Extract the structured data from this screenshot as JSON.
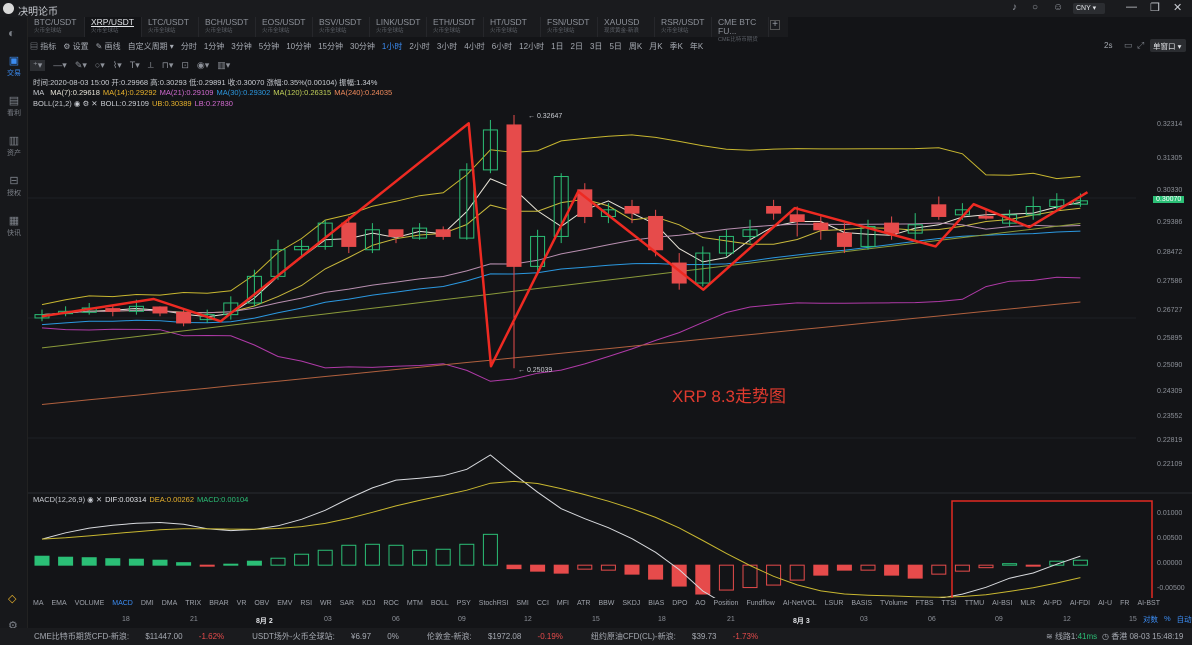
{
  "app": {
    "title": "决明论币",
    "currency": "CNY"
  },
  "tabs": [
    {
      "name": "BTC/USDT",
      "sub": "火币全球站"
    },
    {
      "name": "XRP/USDT",
      "sub": "火币全球站"
    },
    {
      "name": "LTC/USDT",
      "sub": "火币全球站"
    },
    {
      "name": "BCH/USDT",
      "sub": "火币全球站"
    },
    {
      "name": "EOS/USDT",
      "sub": "火币全球站"
    },
    {
      "name": "BSV/USDT",
      "sub": "火币全球站"
    },
    {
      "name": "LINK/USDT",
      "sub": "火币全球站"
    },
    {
      "name": "ETH/USDT",
      "sub": "火币全球站"
    },
    {
      "name": "HT/USDT",
      "sub": "火币全球站"
    },
    {
      "name": "FSN/USDT",
      "sub": "火币全球站"
    },
    {
      "name": "XAUUSD",
      "sub": "现货黄金-新浪"
    },
    {
      "name": "RSR/USDT",
      "sub": "火币全球站"
    },
    {
      "name": "CME BTC FU...",
      "sub": "CME比特币期货"
    }
  ],
  "sidebar": [
    {
      "label": "交易",
      "icon": "chart-icon"
    },
    {
      "label": "看利",
      "icon": "bag-icon"
    },
    {
      "label": "资产",
      "icon": "wallet-icon"
    },
    {
      "label": "授权",
      "icon": "key-icon"
    },
    {
      "label": "快讯",
      "icon": "news-icon"
    }
  ],
  "toolbar": {
    "items": [
      "指标",
      "设置",
      "画线",
      "自定义周期",
      "分时",
      "1分钟",
      "3分钟",
      "5分钟",
      "10分钟",
      "15分钟",
      "30分钟",
      "1小时",
      "2小时",
      "3小时",
      "4小时",
      "6小时",
      "12小时",
      "1日",
      "2日",
      "3日",
      "5日",
      "周K",
      "月K",
      "季K",
      "年K"
    ],
    "active": "1小时",
    "refresh": "2s",
    "mode": "单窗口"
  },
  "info_line": "时间:2020-08-03 15:00 开:0.29968 高:0.30293 低:0.29891 收:0.30070 涨幅:0.35%(0.00104) 振幅:1.34%",
  "ma_legend": [
    "MA",
    "MA(7):0.29618",
    "MA(14):0.29292",
    "MA(21):0.29109",
    "MA(30):0.29302",
    "MA(120):0.26315",
    "MA(240):0.24035"
  ],
  "boll_legend": [
    "BOLL(21,2)",
    "BOLL:0.29109",
    "UB:0.30389",
    "LB:0.27830"
  ],
  "macd_legend": [
    "MACD(12,26,9)",
    "DIF:0.00314",
    "DEA:0.00262",
    "MACD:0.00104"
  ],
  "annotation": "XRP 8.3走势图",
  "price_labels": {
    "high": "0.32647",
    "low": "0.25039",
    "current": "0.30070"
  },
  "y_axis": [
    "0.32314",
    "0.31305",
    "0.30330",
    "0.29386",
    "0.28472",
    "0.27586",
    "0.26727",
    "0.25895",
    "0.25090",
    "0.24309",
    "0.23552",
    "0.22819",
    "0.22109"
  ],
  "macd_axis": [
    "0.01000",
    "0.00500",
    "0.00000",
    "-0.00500"
  ],
  "x_axis": [
    "18",
    "21",
    "8月 2",
    "03",
    "06",
    "09",
    "12",
    "15",
    "18",
    "21",
    "8月 3",
    "03",
    "06",
    "09",
    "12",
    "15"
  ],
  "indicators": [
    "MA",
    "EMA",
    "VOLUME",
    "MACD",
    "DMI",
    "DMA",
    "TRIX",
    "BRAR",
    "VR",
    "OBV",
    "EMV",
    "RSI",
    "WR",
    "SAR",
    "KDJ",
    "ROC",
    "MTM",
    "BOLL",
    "PSY",
    "StochRSI",
    "SMI",
    "CCI",
    "MFI",
    "ATR",
    "BBW",
    "SKDJ",
    "BIAS",
    "DPO",
    "AO",
    "Position",
    "Fundflow",
    "AI-NetVOL",
    "LSUR",
    "BASIS",
    "TVolume",
    "FTBS",
    "TTSI",
    "TTMU",
    "AI-BSI",
    "MLR",
    "AI-PD",
    "AI-FDI",
    "AI-U",
    "FR",
    "AI-BST"
  ],
  "indicator_active": "MACD",
  "right_controls": [
    "对数",
    "%",
    "自动"
  ],
  "status": [
    {
      "label": "CME比特币期货CFD-新浪",
      "price": "$11447.00",
      "change": "-1.62%"
    },
    {
      "label": "USDT场外-火币全球站",
      "price": "¥6.97",
      "change": "0%"
    },
    {
      "label": "伦敦金-新浪",
      "price": "$1972.08",
      "change": "-0.19%"
    },
    {
      "label": "纽约原油CFD(CL)-新浪",
      "price": "$39.73",
      "change": "-1.73%"
    }
  ],
  "network": {
    "label": "线路1:",
    "latency": "41ms"
  },
  "clock": "香港 08-03 15:48:19",
  "chart_data": {
    "type": "candlestick",
    "ylim": [
      0.215,
      0.331
    ],
    "candles": [
      [
        0.2655,
        0.2665,
        0.2645,
        0.268
      ],
      [
        0.2668,
        0.2675,
        0.266,
        0.269
      ],
      [
        0.2672,
        0.2685,
        0.2665,
        0.27
      ],
      [
        0.2683,
        0.2675,
        0.266,
        0.269
      ],
      [
        0.2675,
        0.269,
        0.2665,
        0.271
      ],
      [
        0.2688,
        0.267,
        0.266,
        0.269
      ],
      [
        0.2672,
        0.264,
        0.263,
        0.268
      ],
      [
        0.265,
        0.2665,
        0.264,
        0.268
      ],
      [
        0.2665,
        0.27,
        0.265,
        0.272
      ],
      [
        0.27,
        0.278,
        0.269,
        0.28
      ],
      [
        0.278,
        0.286,
        0.277,
        0.289
      ],
      [
        0.286,
        0.287,
        0.284,
        0.289
      ],
      [
        0.287,
        0.294,
        0.286,
        0.295
      ],
      [
        0.294,
        0.287,
        0.285,
        0.296
      ],
      [
        0.286,
        0.292,
        0.285,
        0.294
      ],
      [
        0.292,
        0.29,
        0.288,
        0.292
      ],
      [
        0.2895,
        0.2925,
        0.289,
        0.294
      ],
      [
        0.292,
        0.29,
        0.289,
        0.293
      ],
      [
        0.2895,
        0.31,
        0.289,
        0.312
      ],
      [
        0.31,
        0.322,
        0.309,
        0.325
      ],
      [
        0.3235,
        0.281,
        0.2504,
        0.3265
      ],
      [
        0.281,
        0.29,
        0.279,
        0.292
      ],
      [
        0.29,
        0.308,
        0.288,
        0.309
      ],
      [
        0.304,
        0.296,
        0.294,
        0.306
      ],
      [
        0.296,
        0.298,
        0.294,
        0.3
      ],
      [
        0.299,
        0.297,
        0.294,
        0.301
      ],
      [
        0.296,
        0.286,
        0.284,
        0.298
      ],
      [
        0.282,
        0.276,
        0.274,
        0.285
      ],
      [
        0.276,
        0.285,
        0.275,
        0.287
      ],
      [
        0.285,
        0.29,
        0.284,
        0.292
      ],
      [
        0.29,
        0.292,
        0.288,
        0.295
      ],
      [
        0.299,
        0.297,
        0.295,
        0.301
      ],
      [
        0.2965,
        0.2945,
        0.29,
        0.299
      ],
      [
        0.294,
        0.292,
        0.289,
        0.296
      ],
      [
        0.291,
        0.287,
        0.285,
        0.294
      ],
      [
        0.287,
        0.293,
        0.286,
        0.295
      ],
      [
        0.294,
        0.291,
        0.289,
        0.296
      ],
      [
        0.291,
        0.2935,
        0.289,
        0.297
      ],
      [
        0.2995,
        0.296,
        0.295,
        0.302
      ],
      [
        0.2965,
        0.298,
        0.295,
        0.3
      ],
      [
        0.296,
        0.2955,
        0.295,
        0.298
      ],
      [
        0.294,
        0.2965,
        0.293,
        0.298
      ],
      [
        0.2965,
        0.299,
        0.295,
        0.302
      ],
      [
        0.299,
        0.301,
        0.298,
        0.303
      ],
      [
        0.2997,
        0.3007,
        0.2989,
        0.3029
      ]
    ],
    "macd_hist": [
      0.0018,
      0.0016,
      0.0015,
      0.0013,
      0.0012,
      0.001,
      0.0005,
      -0.0002,
      0.0002,
      0.0008,
      0.0014,
      0.0022,
      0.003,
      0.004,
      0.0042,
      0.004,
      0.003,
      0.0032,
      0.0042,
      0.0062,
      -0.0007,
      -0.0012,
      -0.0016,
      -0.0008,
      -0.001,
      -0.0018,
      -0.0028,
      -0.0042,
      -0.0058,
      -0.005,
      -0.0045,
      -0.004,
      -0.003,
      -0.002,
      -0.001,
      -0.001,
      -0.002,
      -0.0026,
      -0.0018,
      -0.0012,
      -0.0005,
      0.0003,
      -0.0002,
      0.0008,
      0.001
    ],
    "macd_ylim": [
      -0.007,
      0.0125
    ]
  }
}
